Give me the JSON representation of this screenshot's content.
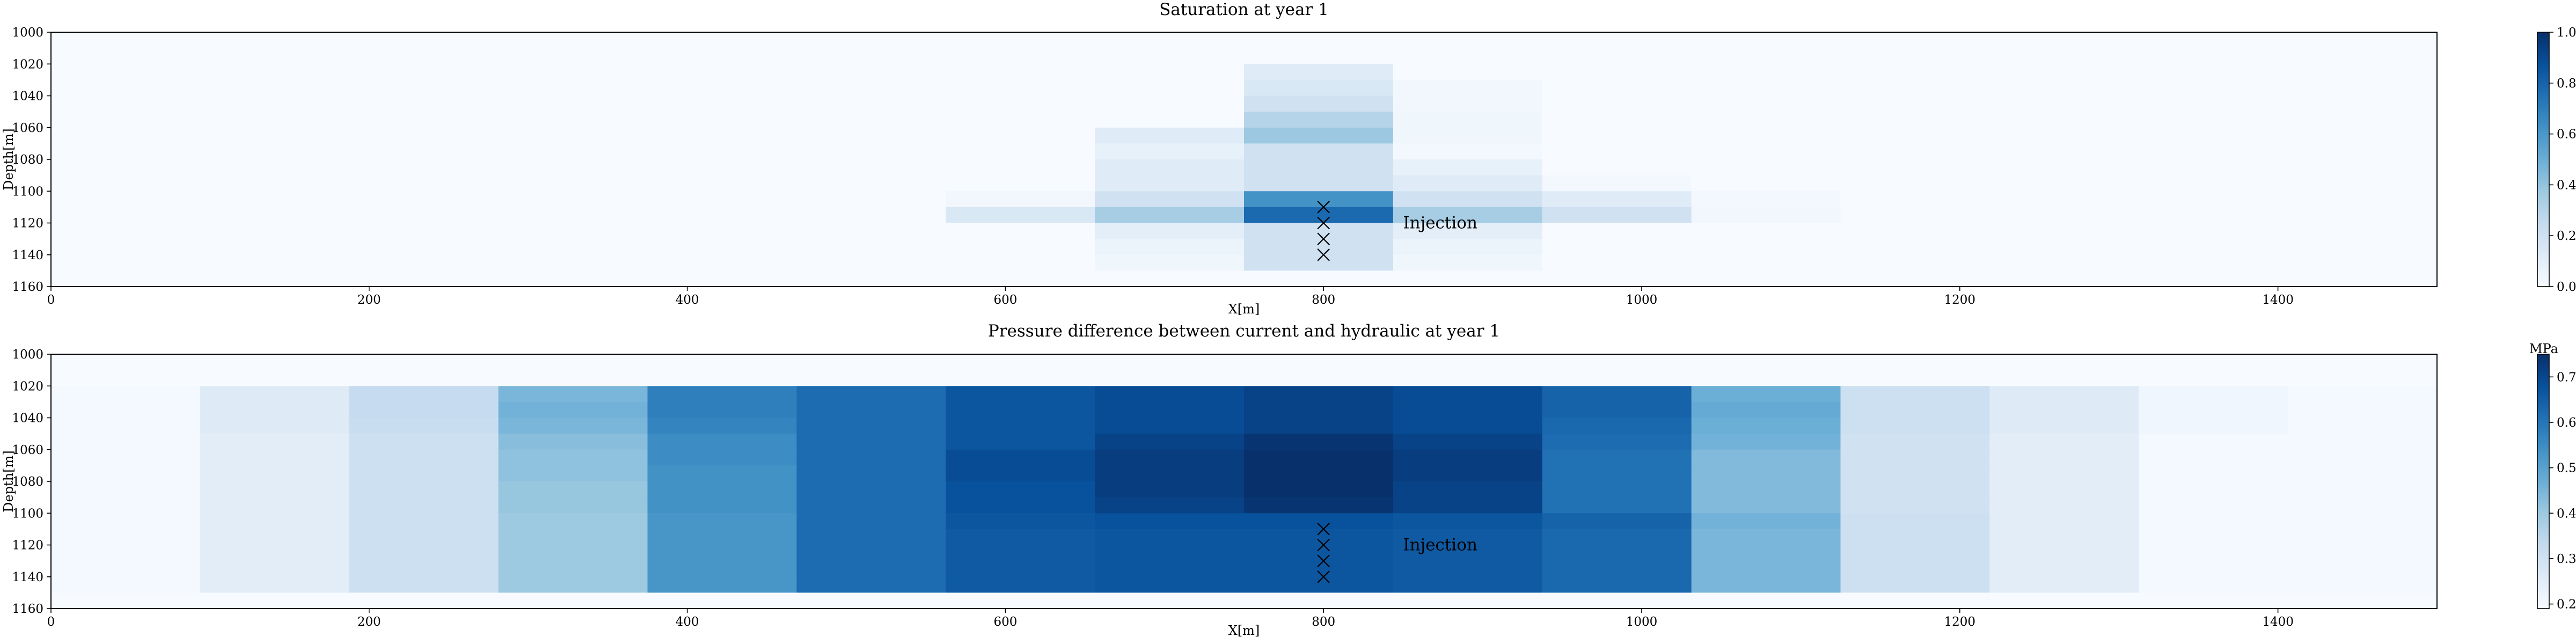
{
  "chart_data": [
    {
      "type": "heatmap",
      "title": "Saturation at year 1",
      "xlabel": "X[m]",
      "ylabel": "Depth[m]",
      "xlim": [
        0,
        1500
      ],
      "ylim": [
        1160,
        1000
      ],
      "x_ticks": [
        "0",
        "200",
        "400",
        "600",
        "800",
        "1000",
        "1200",
        "1400"
      ],
      "y_ticks": [
        "1000",
        "1020",
        "1040",
        "1060",
        "1080",
        "1100",
        "1120",
        "1140",
        "1160"
      ],
      "cell_dx": 93.75,
      "cell_dy": 10,
      "x_edges_from": 0,
      "y_edges_from": 1000,
      "colorbar": {
        "min": 0.0,
        "max": 1.0,
        "ticks": [
          "0.0",
          "0.2",
          "0.4",
          "0.6",
          "0.8",
          "1.0"
        ],
        "label": ""
      },
      "annotation": {
        "text": "Injection",
        "x": 850,
        "y": 1120
      },
      "wells": [
        {
          "x": 800,
          "y": 1110
        },
        {
          "x": 800,
          "y": 1120
        },
        {
          "x": 800,
          "y": 1130
        },
        {
          "x": 800,
          "y": 1140
        }
      ],
      "values": [
        [
          0,
          0,
          0,
          0,
          0,
          0,
          0,
          0,
          0,
          0,
          0,
          0,
          0,
          0,
          0,
          0
        ],
        [
          0,
          0,
          0,
          0,
          0,
          0,
          0,
          0,
          0,
          0,
          0,
          0,
          0,
          0,
          0,
          0
        ],
        [
          0,
          0,
          0,
          0,
          0,
          0,
          0,
          0,
          0.12,
          0,
          0,
          0,
          0,
          0,
          0,
          0
        ],
        [
          0,
          0,
          0,
          0,
          0,
          0,
          0,
          0,
          0.15,
          0.03,
          0,
          0,
          0,
          0,
          0,
          0
        ],
        [
          0,
          0,
          0,
          0,
          0,
          0,
          0,
          0,
          0.2,
          0.03,
          0,
          0,
          0,
          0,
          0,
          0
        ],
        [
          0,
          0,
          0,
          0,
          0,
          0,
          0,
          0,
          0.3,
          0.04,
          0,
          0,
          0,
          0,
          0,
          0
        ],
        [
          0,
          0,
          0,
          0,
          0,
          0,
          0,
          0.12,
          0.38,
          0.04,
          0,
          0,
          0,
          0,
          0,
          0
        ],
        [
          0,
          0,
          0,
          0,
          0,
          0,
          0,
          0.08,
          0.2,
          0.02,
          0,
          0,
          0,
          0,
          0,
          0
        ],
        [
          0,
          0,
          0,
          0,
          0,
          0,
          0,
          0.12,
          0.2,
          0.08,
          0,
          0,
          0,
          0,
          0,
          0
        ],
        [
          0,
          0,
          0,
          0,
          0,
          0,
          0,
          0.12,
          0.2,
          0.12,
          0.02,
          0,
          0,
          0,
          0,
          0
        ],
        [
          0,
          0,
          0,
          0,
          0,
          0,
          0.03,
          0.2,
          0.62,
          0.2,
          0.12,
          0.02,
          0,
          0,
          0,
          0
        ],
        [
          0,
          0,
          0,
          0,
          0,
          0,
          0.15,
          0.35,
          0.78,
          0.35,
          0.2,
          0.03,
          0,
          0,
          0,
          0
        ],
        [
          0,
          0,
          0,
          0,
          0,
          0,
          0,
          0.1,
          0.2,
          0.1,
          0,
          0,
          0,
          0,
          0,
          0
        ],
        [
          0,
          0,
          0,
          0,
          0,
          0,
          0,
          0.06,
          0.2,
          0.06,
          0,
          0,
          0,
          0,
          0,
          0
        ],
        [
          0,
          0,
          0,
          0,
          0,
          0,
          0,
          0.04,
          0.2,
          0.04,
          0,
          0,
          0,
          0,
          0,
          0
        ],
        [
          0,
          0,
          0,
          0,
          0,
          0,
          0,
          0,
          0,
          0,
          0,
          0,
          0,
          0,
          0,
          0
        ]
      ]
    },
    {
      "type": "heatmap",
      "title": "Pressure difference between current and hydraulic at year 1",
      "xlabel": "X[m]",
      "ylabel": "Depth[m]",
      "xlim": [
        0,
        1500
      ],
      "ylim": [
        1160,
        1000
      ],
      "x_ticks": [
        "0",
        "200",
        "400",
        "600",
        "800",
        "1000",
        "1200",
        "1400"
      ],
      "y_ticks": [
        "1000",
        "1020",
        "1040",
        "1060",
        "1080",
        "1100",
        "1120",
        "1140",
        "1160"
      ],
      "cell_dx": 93.75,
      "cell_dy": 10,
      "x_edges_from": 0,
      "y_edges_from": 1000,
      "colorbar": {
        "min": 0.19,
        "max": 0.75,
        "ticks": [
          "0.2",
          "0.3",
          "0.4",
          "0.5",
          "0.6",
          "0.7"
        ],
        "label": "MPa"
      },
      "annotation": {
        "text": "Injection",
        "x": 850,
        "y": 1120
      },
      "wells": [
        {
          "x": 800,
          "y": 1110
        },
        {
          "x": 800,
          "y": 1120
        },
        {
          "x": 800,
          "y": 1130
        },
        {
          "x": 800,
          "y": 1140
        }
      ],
      "values": [
        [
          0.19,
          0.19,
          0.19,
          0.19,
          0.19,
          0.19,
          0.19,
          0.19,
          0.19,
          0.19,
          0.19,
          0.19,
          0.19,
          0.19,
          0.19,
          0.19
        ],
        [
          0.19,
          0.19,
          0.19,
          0.19,
          0.19,
          0.19,
          0.19,
          0.19,
          0.19,
          0.19,
          0.19,
          0.19,
          0.19,
          0.19,
          0.19,
          0.19
        ],
        [
          0.2,
          0.26,
          0.33,
          0.45,
          0.58,
          0.62,
          0.67,
          0.69,
          0.71,
          0.69,
          0.64,
          0.47,
          0.31,
          0.26,
          0.21,
          0.2
        ],
        [
          0.2,
          0.26,
          0.33,
          0.46,
          0.58,
          0.62,
          0.67,
          0.69,
          0.71,
          0.69,
          0.64,
          0.48,
          0.31,
          0.26,
          0.21,
          0.2
        ],
        [
          0.2,
          0.26,
          0.32,
          0.45,
          0.57,
          0.62,
          0.67,
          0.69,
          0.71,
          0.69,
          0.63,
          0.47,
          0.31,
          0.26,
          0.21,
          0.2
        ],
        [
          0.2,
          0.25,
          0.31,
          0.43,
          0.55,
          0.62,
          0.67,
          0.71,
          0.74,
          0.71,
          0.62,
          0.46,
          0.3,
          0.25,
          0.2,
          0.2
        ],
        [
          0.2,
          0.25,
          0.31,
          0.42,
          0.55,
          0.62,
          0.69,
          0.72,
          0.75,
          0.72,
          0.61,
          0.44,
          0.3,
          0.25,
          0.2,
          0.2
        ],
        [
          0.2,
          0.25,
          0.31,
          0.42,
          0.54,
          0.62,
          0.69,
          0.72,
          0.75,
          0.72,
          0.61,
          0.44,
          0.3,
          0.25,
          0.2,
          0.2
        ],
        [
          0.2,
          0.25,
          0.31,
          0.41,
          0.54,
          0.62,
          0.68,
          0.72,
          0.75,
          0.71,
          0.61,
          0.44,
          0.3,
          0.25,
          0.2,
          0.2
        ],
        [
          0.2,
          0.25,
          0.31,
          0.41,
          0.54,
          0.62,
          0.68,
          0.71,
          0.74,
          0.71,
          0.61,
          0.44,
          0.3,
          0.25,
          0.2,
          0.2
        ],
        [
          0.2,
          0.25,
          0.31,
          0.4,
          0.53,
          0.62,
          0.67,
          0.68,
          0.68,
          0.67,
          0.64,
          0.46,
          0.31,
          0.25,
          0.2,
          0.2
        ],
        [
          0.2,
          0.25,
          0.31,
          0.4,
          0.53,
          0.62,
          0.66,
          0.67,
          0.67,
          0.66,
          0.63,
          0.45,
          0.31,
          0.25,
          0.2,
          0.2
        ],
        [
          0.2,
          0.25,
          0.31,
          0.4,
          0.53,
          0.62,
          0.66,
          0.67,
          0.67,
          0.66,
          0.63,
          0.45,
          0.31,
          0.25,
          0.2,
          0.2
        ],
        [
          0.2,
          0.25,
          0.31,
          0.4,
          0.53,
          0.62,
          0.66,
          0.67,
          0.67,
          0.66,
          0.63,
          0.45,
          0.31,
          0.25,
          0.2,
          0.2
        ],
        [
          0.2,
          0.25,
          0.31,
          0.4,
          0.53,
          0.62,
          0.66,
          0.67,
          0.67,
          0.66,
          0.63,
          0.45,
          0.31,
          0.25,
          0.2,
          0.2
        ],
        [
          0.19,
          0.19,
          0.19,
          0.19,
          0.19,
          0.19,
          0.19,
          0.19,
          0.19,
          0.19,
          0.19,
          0.19,
          0.19,
          0.19,
          0.19,
          0.19
        ]
      ]
    }
  ]
}
